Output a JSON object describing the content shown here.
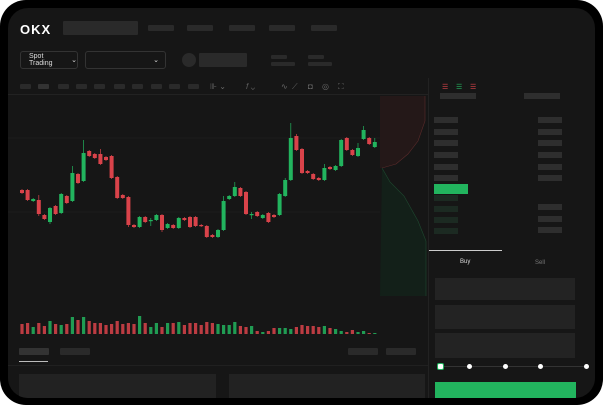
{
  "header": {
    "logo": "OKX"
  },
  "toolbar": {
    "market_type": "Spot Trading"
  },
  "chart_toolbar": {
    "icons": [
      "line-icon",
      "ruler-icon",
      "camera-icon",
      "settings-icon",
      "fullscreen-icon"
    ]
  },
  "trade": {
    "tabs": [
      "Buy",
      "Sell"
    ],
    "active_tab": "Buy",
    "slider_percent": 0
  },
  "colors": {
    "up": "#22b45e",
    "down": "#d9434a",
    "background": "#161616"
  },
  "chart_data": {
    "type": "candlestick",
    "candles_ohlc": [
      [
        58,
        55,
        59,
        54
      ],
      [
        58,
        48,
        59,
        47
      ],
      [
        47,
        49,
        50,
        46
      ],
      [
        48,
        34,
        53,
        32
      ],
      [
        33,
        29,
        34,
        28
      ],
      [
        26,
        40,
        41,
        24
      ],
      [
        42,
        34,
        43,
        33
      ],
      [
        35,
        54,
        55,
        34
      ],
      [
        52,
        45,
        53,
        44
      ],
      [
        47,
        75,
        82,
        46
      ],
      [
        74,
        65,
        75,
        64
      ],
      [
        67,
        95,
        108,
        66
      ],
      [
        97,
        92,
        98,
        91
      ],
      [
        94,
        90,
        95,
        89
      ],
      [
        94,
        84,
        99,
        83
      ],
      [
        91,
        88,
        92,
        87
      ],
      [
        92,
        70,
        93,
        69
      ],
      [
        71,
        50,
        72,
        49
      ],
      [
        53,
        50,
        54,
        49
      ],
      [
        51,
        23,
        52,
        21
      ],
      [
        23,
        21,
        24,
        20
      ],
      [
        21,
        31,
        32,
        20
      ],
      [
        31,
        26,
        32,
        25
      ],
      [
        27,
        28,
        30,
        22
      ],
      [
        28,
        33,
        34,
        27
      ],
      [
        33,
        18,
        34,
        16
      ],
      [
        20,
        24,
        25,
        19
      ],
      [
        23,
        20,
        24,
        19
      ],
      [
        20,
        30,
        31,
        19
      ],
      [
        30,
        28,
        31,
        27
      ],
      [
        31,
        21,
        32,
        20
      ],
      [
        31,
        22,
        32,
        21
      ],
      [
        23,
        22,
        24,
        21
      ],
      [
        22,
        11,
        23,
        10
      ],
      [
        13,
        11,
        14,
        10
      ],
      [
        11,
        18,
        19,
        10
      ],
      [
        18,
        47,
        52,
        17
      ],
      [
        49,
        52,
        53,
        48
      ],
      [
        52,
        61,
        66,
        51
      ],
      [
        60,
        52,
        61,
        51
      ],
      [
        56,
        34,
        57,
        33
      ],
      [
        33,
        34,
        36,
        29
      ],
      [
        36,
        32,
        37,
        31
      ],
      [
        30,
        33,
        34,
        29
      ],
      [
        35,
        26,
        36,
        25
      ],
      [
        33,
        31,
        34,
        30
      ],
      [
        33,
        54,
        55,
        32
      ],
      [
        52,
        68,
        70,
        51
      ],
      [
        68,
        110,
        125,
        67
      ],
      [
        112,
        98,
        114,
        97
      ],
      [
        99,
        75,
        100,
        74
      ],
      [
        77,
        75,
        78,
        74
      ],
      [
        74,
        69,
        75,
        68
      ],
      [
        70,
        68,
        71,
        67
      ],
      [
        68,
        80,
        84,
        67
      ],
      [
        81,
        79,
        82,
        78
      ],
      [
        78,
        82,
        83,
        77
      ],
      [
        82,
        108,
        109,
        81
      ],
      [
        110,
        98,
        111,
        97
      ],
      [
        98,
        93,
        99,
        92
      ],
      [
        92,
        100,
        105,
        91
      ],
      [
        109,
        118,
        122,
        108
      ],
      [
        110,
        104,
        111,
        103
      ],
      [
        101,
        106,
        110,
        100
      ]
    ],
    "volumes": [
      10,
      11,
      7,
      11,
      8,
      13,
      10,
      9,
      10,
      17,
      14,
      17,
      13,
      11,
      11,
      9,
      10,
      13,
      10,
      11,
      10,
      18,
      11,
      7,
      11,
      7,
      11,
      11,
      12,
      9,
      11,
      11,
      9,
      12,
      11,
      10,
      9,
      9,
      12,
      8,
      7,
      8,
      3,
      2,
      3,
      6,
      6,
      6,
      5,
      7,
      9,
      8,
      8,
      7,
      8,
      6,
      5,
      3,
      2,
      4,
      2,
      3,
      1,
      1
    ]
  }
}
